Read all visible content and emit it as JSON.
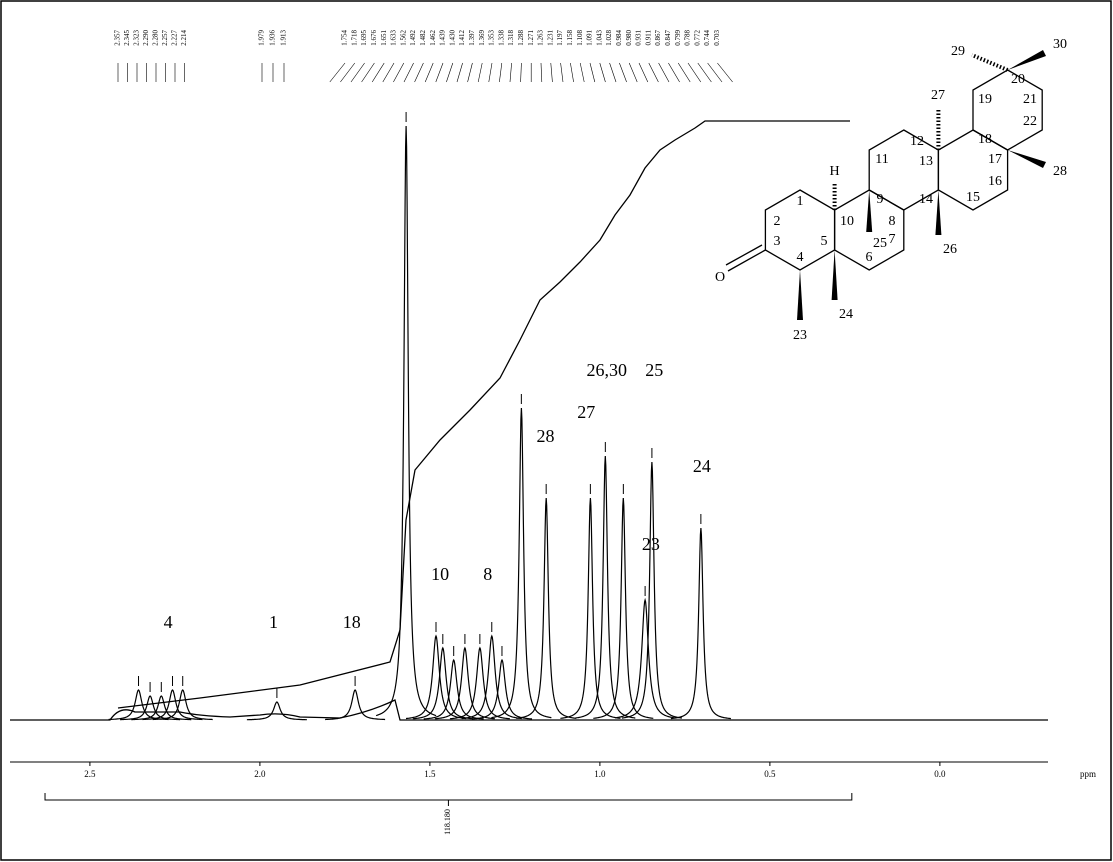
{
  "chart_data": {
    "type": "spectrum",
    "xlim": [
      2.735,
      -0.318
    ],
    "ylim": [
      0,
      100
    ],
    "xticks": [
      2.5,
      {
        "value": 2,
        "label": "2.0"
      },
      1.5,
      {
        "value": 1,
        "label": "1.0"
      },
      0.5,
      {
        "value": 0,
        "label": "0.0"
      }
    ],
    "xlabel": "ppm",
    "color": "#000000",
    "peaks": {
      "x": [
        2.357,
        2.323,
        2.29,
        2.257,
        2.227,
        1.95,
        1.72,
        1.57,
        1.482,
        1.462,
        1.43,
        1.397,
        1.353,
        1.318,
        1.288,
        1.231,
        1.158,
        1.028,
        0.984,
        0.931,
        0.867,
        0.847,
        0.703
      ],
      "values": [
        5,
        4,
        4,
        5,
        5,
        3,
        5,
        99,
        14,
        12,
        10,
        12,
        12,
        14,
        10,
        52,
        37,
        37,
        44,
        37,
        20,
        43,
        32
      ]
    },
    "annotations": [
      {
        "text": "4",
        "x": 2.27,
        "y": 16
      },
      {
        "text": "1",
        "x": 1.96,
        "y": 16
      },
      {
        "text": "18",
        "x": 1.73,
        "y": 16
      },
      {
        "text": "10",
        "x": 1.47,
        "y": 24
      },
      {
        "text": "8",
        "x": 1.33,
        "y": 24
      },
      {
        "text": "28",
        "x": 1.16,
        "y": 47
      },
      {
        "text": "27",
        "x": 1.04,
        "y": 51
      },
      {
        "text": "26,30",
        "x": 0.98,
        "y": 58
      },
      {
        "text": "25",
        "x": 0.84,
        "y": 58
      },
      {
        "text": "23",
        "x": 0.85,
        "y": 29
      },
      {
        "text": "24",
        "x": 0.7,
        "y": 42
      }
    ],
    "peak_list": [
      [
        "2.357",
        "2.345",
        "2.323",
        "2.290",
        "2.280",
        "2.257",
        "2.227",
        "2.214"
      ],
      [
        "1.979",
        "1.936",
        "1.913"
      ],
      [
        "1.754",
        "1.718",
        "1.695",
        "1.676",
        "1.651",
        "1.633",
        "1.562",
        "1.492",
        "1.482",
        "1.462",
        "1.439",
        "1.430",
        "1.412",
        "1.397",
        "1.369",
        "1.353",
        "1.338",
        "1.318",
        "1.288",
        "1.271",
        "1.263",
        "1.231",
        "1.197",
        "1.158",
        "1.108",
        "1.091",
        "1.043",
        "1.028",
        "0.984",
        "0.980",
        "0.931",
        "0.911",
        "0.867",
        "0.847",
        "0.799",
        "0.788",
        "0.772",
        "0.744",
        "0.703"
      ]
    ],
    "integral": {
      "x": [
        2.632,
        0.259
      ],
      "label": "118.180"
    }
  },
  "structure": {
    "labels": [
      "29",
      "30",
      "20",
      "19",
      "21",
      "22",
      "27",
      "12",
      "18",
      "11",
      "13",
      "17",
      "28",
      "H",
      "9",
      "14",
      "16",
      "15",
      "1",
      "10",
      "8",
      "2",
      "25",
      "7",
      "26",
      "3",
      "4",
      "5",
      "6",
      "O",
      "24",
      "23"
    ]
  }
}
